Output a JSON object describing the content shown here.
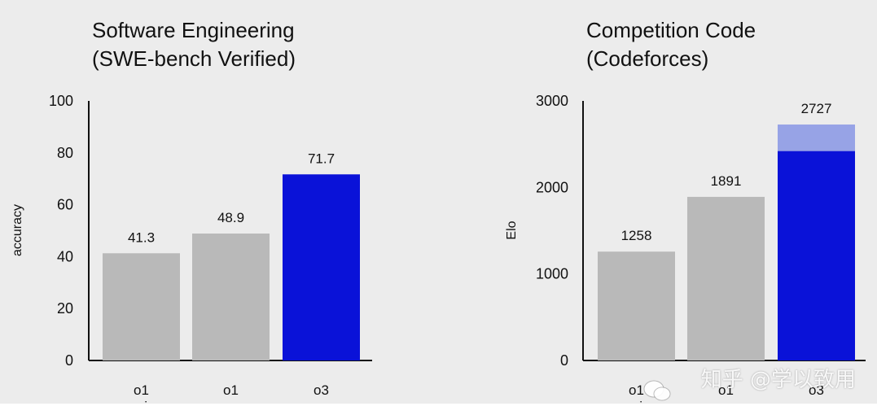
{
  "chart_data": [
    {
      "type": "bar",
      "title": [
        "Software Engineering",
        "(SWE-bench Verified)"
      ],
      "ylabel": "accuracy",
      "ylim": [
        0,
        100
      ],
      "yticks": [
        0,
        20,
        40,
        60,
        80,
        100
      ],
      "categories": [
        [
          "o1",
          "preview"
        ],
        [
          "o1"
        ],
        [
          "o3"
        ]
      ],
      "values": [
        41.3,
        48.9,
        71.7
      ],
      "data_labels": [
        "41.3",
        "48.9",
        "71.7"
      ],
      "colors": [
        "#b9b9b9",
        "#b9b9b9",
        "#0a12d8"
      ],
      "grid": false
    },
    {
      "type": "bar",
      "title": [
        "Competition Code",
        "(Codeforces)"
      ],
      "ylabel": "Elo",
      "ylim": [
        0,
        3000
      ],
      "yticks": [
        0,
        1000,
        2000,
        3000
      ],
      "categories": [
        [
          "o1",
          "preview"
        ],
        [
          "o1"
        ],
        [
          "o3"
        ]
      ],
      "values": [
        1258,
        1891,
        2727
      ],
      "o3_stacked_lower_value": 2420,
      "data_labels": [
        "1258",
        "1891",
        "2727"
      ],
      "colors": [
        "#b9b9b9",
        "#b9b9b9",
        "#0a12d8"
      ],
      "extension_color": "#97a3e6",
      "grid": false
    }
  ],
  "watermark": {
    "text": "知乎 @学以致用",
    "icon": "wechat-bubble-icon"
  }
}
